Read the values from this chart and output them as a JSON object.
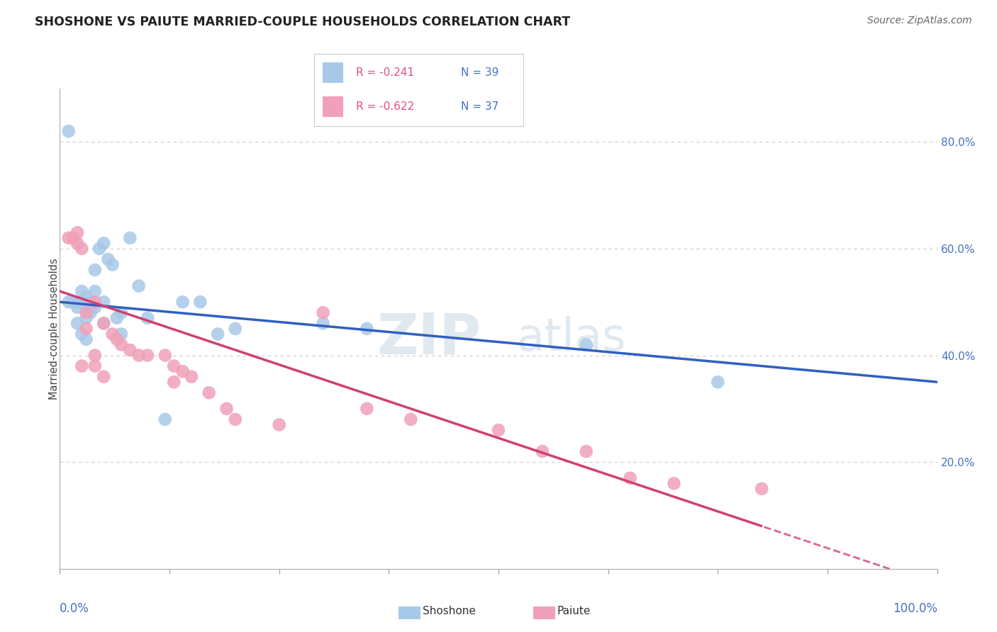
{
  "title": "SHOSHONE VS PAIUTE MARRIED-COUPLE HOUSEHOLDS CORRELATION CHART",
  "source": "Source: ZipAtlas.com",
  "ylabel": "Married-couple Households",
  "watermark": "ZIPatlas",
  "shoshone": {
    "label": "Shoshone",
    "R": -0.241,
    "N": 39,
    "color": "#a8c8e8",
    "line_color": "#3060c0",
    "x": [
      0.01,
      0.01,
      0.015,
      0.02,
      0.02,
      0.025,
      0.025,
      0.03,
      0.03,
      0.03,
      0.035,
      0.035,
      0.04,
      0.04,
      0.045,
      0.05,
      0.05,
      0.055,
      0.06,
      0.065,
      0.07,
      0.08,
      0.09,
      0.1,
      0.12,
      0.14,
      0.16,
      0.18,
      0.2,
      0.3,
      0.35,
      0.6,
      0.75,
      0.02,
      0.025,
      0.03,
      0.04,
      0.05,
      0.07
    ],
    "y": [
      0.82,
      0.5,
      0.5,
      0.5,
      0.49,
      0.52,
      0.5,
      0.51,
      0.49,
      0.47,
      0.5,
      0.48,
      0.52,
      0.56,
      0.6,
      0.61,
      0.5,
      0.58,
      0.57,
      0.47,
      0.48,
      0.62,
      0.53,
      0.47,
      0.28,
      0.5,
      0.5,
      0.44,
      0.45,
      0.46,
      0.45,
      0.42,
      0.35,
      0.46,
      0.44,
      0.43,
      0.49,
      0.46,
      0.44
    ]
  },
  "paiute": {
    "label": "Paiute",
    "R": -0.622,
    "N": 37,
    "color": "#f0a0b8",
    "line_color": "#d04070",
    "x": [
      0.01,
      0.015,
      0.02,
      0.02,
      0.025,
      0.03,
      0.03,
      0.04,
      0.04,
      0.05,
      0.06,
      0.065,
      0.07,
      0.08,
      0.09,
      0.1,
      0.12,
      0.13,
      0.14,
      0.15,
      0.17,
      0.19,
      0.2,
      0.25,
      0.3,
      0.35,
      0.4,
      0.5,
      0.55,
      0.6,
      0.65,
      0.7,
      0.8,
      0.025,
      0.04,
      0.05,
      0.13
    ],
    "y": [
      0.62,
      0.62,
      0.63,
      0.61,
      0.6,
      0.48,
      0.45,
      0.5,
      0.38,
      0.46,
      0.44,
      0.43,
      0.42,
      0.41,
      0.4,
      0.4,
      0.4,
      0.38,
      0.37,
      0.36,
      0.33,
      0.3,
      0.28,
      0.27,
      0.48,
      0.3,
      0.28,
      0.26,
      0.22,
      0.22,
      0.17,
      0.16,
      0.15,
      0.38,
      0.4,
      0.36,
      0.35
    ]
  },
  "xlim": [
    0.0,
    1.0
  ],
  "ylim": [
    0.0,
    0.9
  ],
  "yticks": [
    0.0,
    0.2,
    0.4,
    0.6,
    0.8
  ],
  "ytick_labels": [
    "",
    "20.0%",
    "40.0%",
    "60.0%",
    "80.0%"
  ],
  "xticks": [
    0.0,
    0.125,
    0.25,
    0.375,
    0.5,
    0.625,
    0.75,
    0.875,
    1.0
  ],
  "grid_color": "#cccccc",
  "background_color": "#ffffff",
  "title_fontsize": 13,
  "axis_color": "#4472c4",
  "legend_R_color": "#e05080"
}
